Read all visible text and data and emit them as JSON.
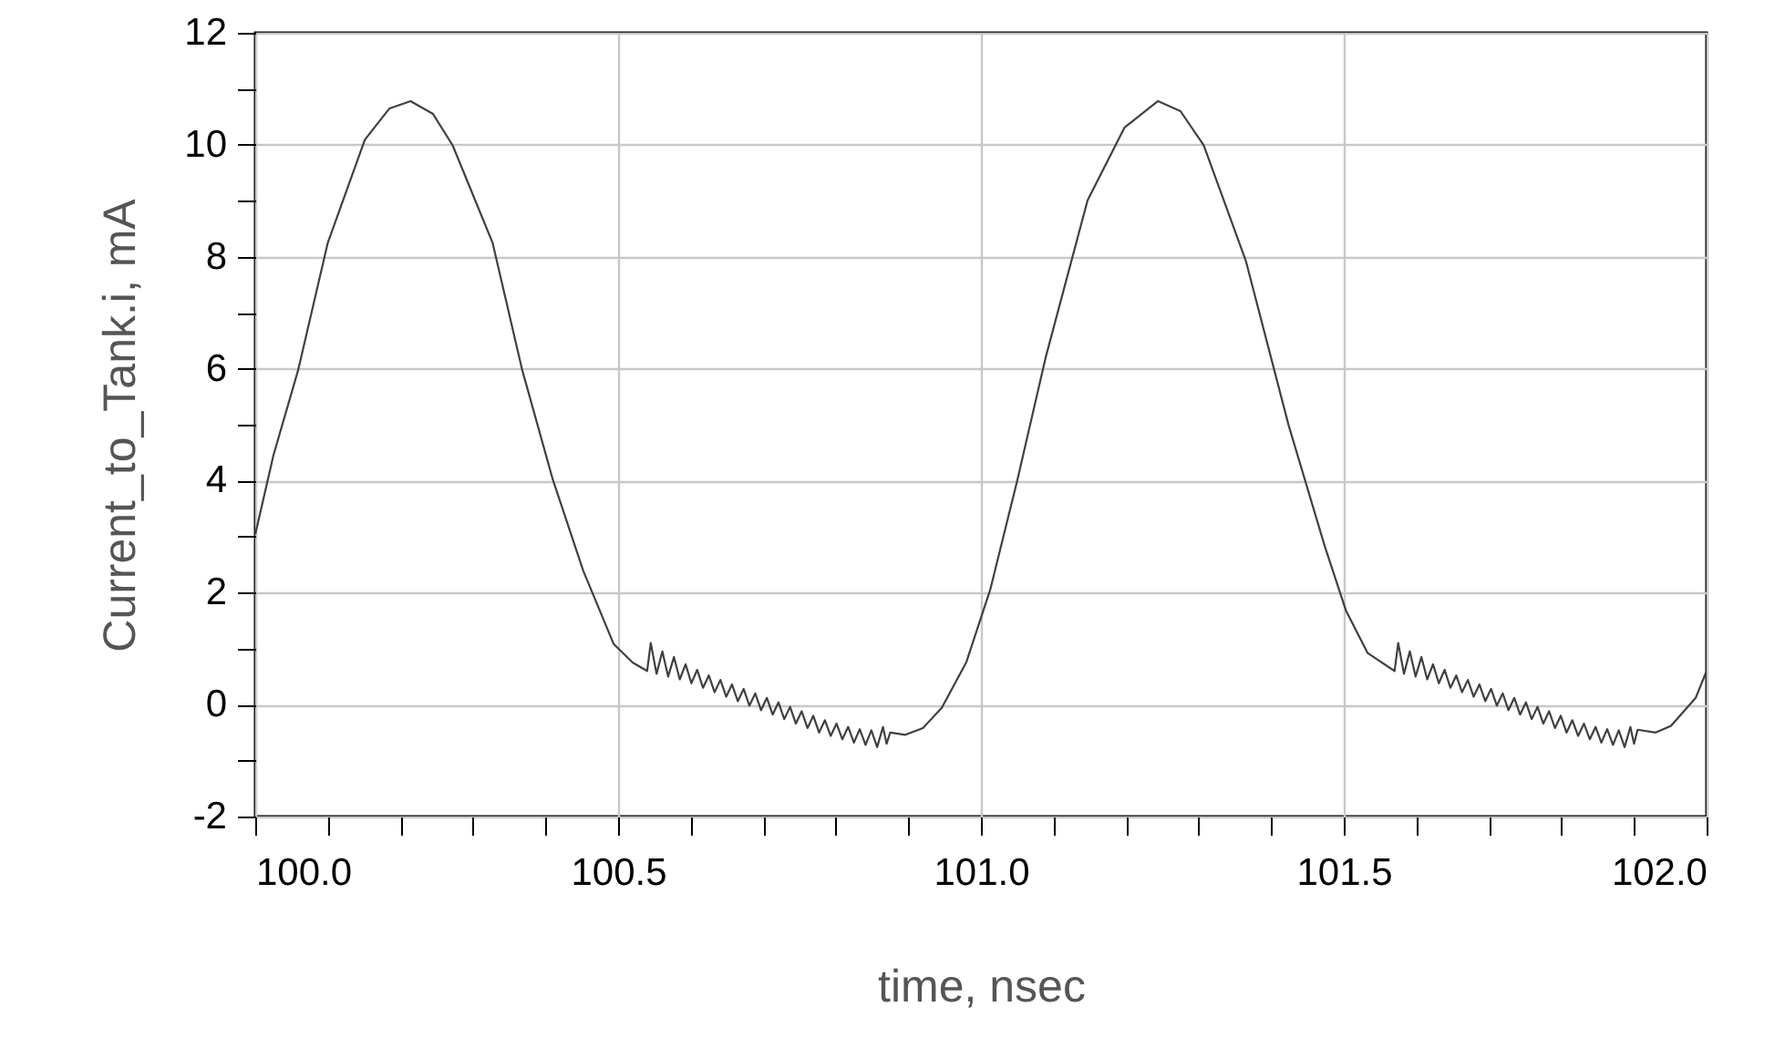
{
  "chart_data": {
    "type": "line",
    "xlabel": "time, nsec",
    "ylabel": "Current_to_Tank.i, mA",
    "xlim": [
      100,
      102
    ],
    "ylim": [
      -2,
      12
    ],
    "xticks": [
      {
        "value": 100,
        "label": "100.0"
      },
      {
        "value": 100.1,
        "label": null
      },
      {
        "value": 100.2,
        "label": null
      },
      {
        "value": 100.3,
        "label": null
      },
      {
        "value": 100.4,
        "label": null
      },
      {
        "value": 100.5,
        "label": "100.5"
      },
      {
        "value": 100.6,
        "label": null
      },
      {
        "value": 100.7,
        "label": null
      },
      {
        "value": 100.8,
        "label": null
      },
      {
        "value": 100.9,
        "label": null
      },
      {
        "value": 101,
        "label": "101.0"
      },
      {
        "value": 101.1,
        "label": null
      },
      {
        "value": 101.2,
        "label": null
      },
      {
        "value": 101.3,
        "label": null
      },
      {
        "value": 101.4,
        "label": null
      },
      {
        "value": 101.5,
        "label": "101.5"
      },
      {
        "value": 101.6,
        "label": null
      },
      {
        "value": 101.7,
        "label": null
      },
      {
        "value": 101.8,
        "label": null
      },
      {
        "value": 101.9,
        "label": null
      },
      {
        "value": 102,
        "label": "102.0"
      }
    ],
    "yticks": [
      -2,
      {
        "value": -1,
        "label": null
      },
      0,
      {
        "value": 1,
        "label": null
      },
      2,
      {
        "value": 3,
        "label": null
      },
      4,
      {
        "value": 5,
        "label": null
      },
      6,
      {
        "value": 7,
        "label": null
      },
      8,
      {
        "value": 9,
        "label": null
      },
      10,
      {
        "value": 11,
        "label": null
      },
      12
    ],
    "grid": true,
    "line_style": "solid",
    "series": [
      {
        "color": "#404040",
        "x": [
          100,
          100.025,
          100.059,
          100.1,
          100.151,
          100.185,
          100.214,
          100.245,
          100.272,
          100.327,
          100.368,
          100.41,
          100.452,
          100.494,
          100.52,
          100.54,
          100.545,
          100.553,
          100.561,
          100.569,
          100.577,
          100.585,
          100.593,
          100.601,
          100.609,
          100.617,
          100.625,
          100.633,
          100.641,
          100.649,
          100.657,
          100.665,
          100.673,
          100.681,
          100.689,
          100.697,
          100.705,
          100.713,
          100.721,
          100.729,
          100.737,
          100.745,
          100.753,
          100.761,
          100.769,
          100.777,
          100.785,
          100.793,
          100.801,
          100.809,
          100.817,
          100.825,
          100.833,
          100.841,
          100.849,
          100.857,
          100.865,
          100.87,
          100.875,
          100.896,
          100.92,
          100.946,
          100.98,
          101.013,
          101.05,
          101.089,
          101.147,
          101.198,
          101.244,
          101.275,
          101.307,
          101.365,
          101.424,
          101.474,
          101.503,
          101.533,
          101.57,
          101.575,
          101.583,
          101.591,
          101.599,
          101.607,
          101.615,
          101.623,
          101.631,
          101.639,
          101.647,
          101.655,
          101.663,
          101.671,
          101.679,
          101.687,
          101.695,
          101.703,
          101.711,
          101.719,
          101.727,
          101.735,
          101.743,
          101.751,
          101.759,
          101.767,
          101.775,
          101.783,
          101.791,
          101.799,
          101.807,
          101.815,
          101.823,
          101.831,
          101.839,
          101.847,
          101.855,
          101.863,
          101.871,
          101.879,
          101.887,
          101.895,
          101.9,
          101.905,
          101.93,
          101.951,
          101.985,
          102
        ],
        "values": [
          3.04,
          4.45,
          5.97,
          8.25,
          10.09,
          10.65,
          10.78,
          10.55,
          9.99,
          8.25,
          5.97,
          4.02,
          2.39,
          1.08,
          0.75,
          0.6,
          1.1,
          0.55,
          0.95,
          0.5,
          0.85,
          0.45,
          0.72,
          0.38,
          0.62,
          0.3,
          0.52,
          0.22,
          0.44,
          0.14,
          0.36,
          0.06,
          0.28,
          -0.02,
          0.2,
          -0.1,
          0.12,
          -0.18,
          0.04,
          -0.26,
          -0.04,
          -0.34,
          -0.12,
          -0.42,
          -0.2,
          -0.5,
          -0.28,
          -0.56,
          -0.34,
          -0.62,
          -0.4,
          -0.68,
          -0.44,
          -0.72,
          -0.46,
          -0.76,
          -0.4,
          -0.7,
          -0.5,
          -0.54,
          -0.42,
          -0.06,
          0.76,
          2.06,
          4.0,
          6.19,
          9.01,
          10.31,
          10.78,
          10.6,
          9.99,
          7.93,
          4.99,
          2.82,
          1.68,
          0.92,
          0.6,
          1.1,
          0.55,
          0.95,
          0.5,
          0.85,
          0.45,
          0.72,
          0.38,
          0.62,
          0.3,
          0.52,
          0.22,
          0.44,
          0.14,
          0.36,
          0.06,
          0.28,
          -0.02,
          0.2,
          -0.1,
          0.12,
          -0.18,
          0.04,
          -0.26,
          -0.04,
          -0.34,
          -0.12,
          -0.42,
          -0.2,
          -0.5,
          -0.28,
          -0.56,
          -0.34,
          -0.62,
          -0.4,
          -0.68,
          -0.44,
          -0.72,
          -0.46,
          -0.76,
          -0.4,
          -0.7,
          -0.45,
          -0.5,
          -0.38,
          0.12,
          0.6
        ]
      }
    ]
  }
}
